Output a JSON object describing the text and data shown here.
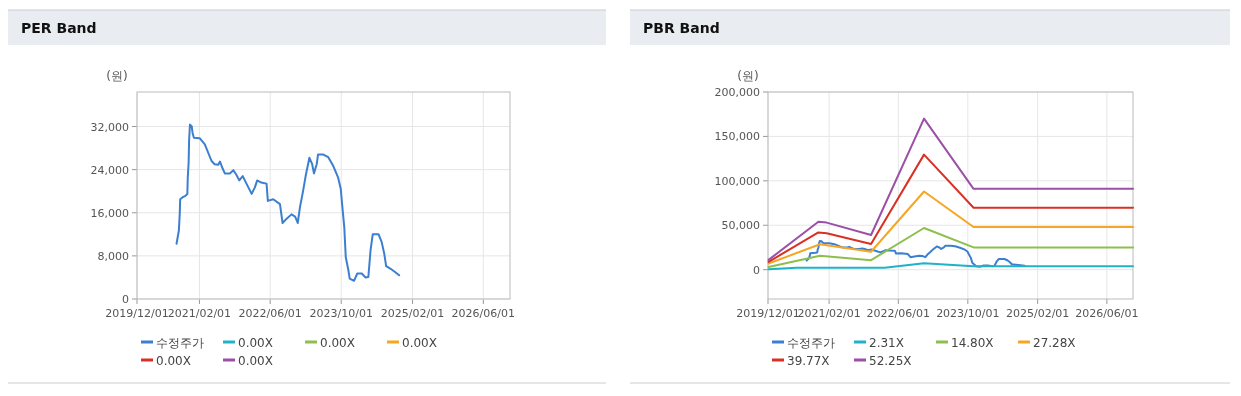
{
  "chart_data": [
    {
      "type": "line",
      "title": "PER Band",
      "ylabel": "(원)",
      "xlim": [
        "2019-12-01",
        "2026-12-01"
      ],
      "ylim": [
        0,
        38400
      ],
      "xticks": [
        {
          "value": "2019-12-01",
          "label": "2019/12/01"
        },
        {
          "value": "2021-02-01",
          "label": "2021/02/01"
        },
        {
          "value": "2022-06-01",
          "label": "2022/06/01"
        },
        {
          "value": "2023-10-01",
          "label": "2023/10/01"
        },
        {
          "value": "2025-02-01",
          "label": "2025/02/01"
        },
        {
          "value": "2026-06-01",
          "label": "2026/06/01"
        }
      ],
      "yticks": [
        0,
        {
          "value": 8000,
          "label": "8,000"
        },
        {
          "value": 16000,
          "label": "16,000"
        },
        {
          "value": 24000,
          "label": "24,000"
        },
        {
          "value": 32000,
          "label": "32,000"
        }
      ],
      "grid": true,
      "legend": "bottom",
      "series": [
        {
          "name": "수정주가",
          "color": "#3c7fd1",
          "x": [
            "2020-08-28",
            "2020-09-13",
            "2020-09-19",
            "2020-09-22",
            "2020-10-07",
            "2020-10-28",
            "2020-11-10",
            "2020-11-13",
            "2020-11-19",
            "2020-11-22",
            "2020-11-28",
            "2020-12-10",
            "2020-12-16",
            "2020-12-25",
            "2021-02-04",
            "2021-03-10",
            "2021-04-25",
            "2021-05-16",
            "2021-06-10",
            "2021-06-22",
            "2021-07-07",
            "2021-07-25",
            "2021-08-28",
            "2021-09-22",
            "2021-10-13",
            "2021-11-01",
            "2021-11-25",
            "2021-12-22",
            "2022-01-25",
            "2022-02-16",
            "2022-03-04",
            "2022-04-01",
            "2022-05-07",
            "2022-05-16",
            "2022-06-22",
            "2022-08-07",
            "2022-08-25",
            "2022-09-22",
            "2022-10-25",
            "2022-11-19",
            "2022-12-07",
            "2022-12-22",
            "2023-01-13",
            "2023-02-01",
            "2023-02-25",
            "2023-03-16",
            "2023-03-28",
            "2023-04-16",
            "2023-04-25",
            "2023-06-01",
            "2023-07-04",
            "2023-08-07",
            "2023-09-10",
            "2023-09-28",
            "2023-10-07",
            "2023-10-22",
            "2023-11-01",
            "2023-11-19",
            "2023-11-28",
            "2023-12-28",
            "2024-01-19",
            "2024-02-19",
            "2024-03-16",
            "2024-04-04",
            "2024-04-19",
            "2024-05-04",
            "2024-06-13",
            "2024-07-04",
            "2024-07-22",
            "2024-08-04",
            "2024-09-01",
            "2024-10-04",
            "2024-11-01"
          ],
          "values": [
            10250,
            12700,
            15800,
            18500,
            18850,
            19150,
            19460,
            22500,
            25300,
            29300,
            32350,
            32050,
            30800,
            29900,
            29800,
            28700,
            25600,
            25000,
            24900,
            25500,
            24400,
            23300,
            23300,
            23900,
            23000,
            22000,
            22800,
            21300,
            19500,
            20700,
            22000,
            21600,
            21400,
            18200,
            18500,
            17600,
            14100,
            14900,
            15700,
            15300,
            14100,
            17000,
            20100,
            23100,
            26200,
            25000,
            23300,
            25000,
            26800,
            26800,
            26300,
            24700,
            22500,
            20400,
            17600,
            13300,
            7800,
            5340,
            3800,
            3380,
            4730,
            4730,
            4000,
            4100,
            9000,
            12000,
            12000,
            10600,
            8400,
            6100,
            5650,
            5000,
            4400
          ]
        },
        {
          "name": "0.00X",
          "color": "#1fb2c9"
        },
        {
          "name": "0.00X",
          "color": "#8cbf4e"
        },
        {
          "name": "0.00X",
          "color": "#f5a623"
        },
        {
          "name": "0.00X",
          "color": "#d93025"
        },
        {
          "name": "0.00X",
          "color": "#9b4fa6"
        }
      ]
    },
    {
      "type": "line",
      "title": "PBR Band",
      "ylabel": "(원)",
      "xlim": [
        "2019-12-01",
        "2026-12-01"
      ],
      "ylim": [
        -33000,
        200000
      ],
      "xticks": [
        {
          "value": "2019-12-01",
          "label": "2019/12/01"
        },
        {
          "value": "2021-02-01",
          "label": "2021/02/01"
        },
        {
          "value": "2022-06-01",
          "label": "2022/06/01"
        },
        {
          "value": "2023-10-01",
          "label": "2023/10/01"
        },
        {
          "value": "2025-02-01",
          "label": "2025/02/01"
        },
        {
          "value": "2026-06-01",
          "label": "2026/06/01"
        }
      ],
      "yticks": [
        0,
        {
          "value": 50000,
          "label": "50,000"
        },
        {
          "value": 100000,
          "label": "100,000"
        },
        {
          "value": 150000,
          "label": "150,000"
        },
        {
          "value": 200000,
          "label": "200,000"
        }
      ],
      "grid": true,
      "legend": "bottom",
      "series": [
        {
          "name": "수정주가",
          "color": "#3c7fd1",
          "x": [
            "2020-08-28",
            "2020-09-13",
            "2020-09-19",
            "2020-09-22",
            "2020-10-07",
            "2020-10-28",
            "2020-11-10",
            "2020-11-13",
            "2020-11-19",
            "2020-11-22",
            "2020-11-28",
            "2020-12-10",
            "2020-12-16",
            "2020-12-25",
            "2021-02-04",
            "2021-03-10",
            "2021-04-25",
            "2021-05-16",
            "2021-06-10",
            "2021-06-22",
            "2021-07-07",
            "2021-07-25",
            "2021-08-28",
            "2021-09-22",
            "2021-10-13",
            "2021-11-01",
            "2021-11-25",
            "2021-12-22",
            "2022-01-25",
            "2022-02-16",
            "2022-03-04",
            "2022-04-01",
            "2022-05-07",
            "2022-05-16",
            "2022-06-22",
            "2022-08-07",
            "2022-08-25",
            "2022-09-22",
            "2022-10-25",
            "2022-11-19",
            "2022-12-07",
            "2022-12-22",
            "2023-01-13",
            "2023-02-01",
            "2023-02-25",
            "2023-03-16",
            "2023-03-28",
            "2023-04-16",
            "2023-04-25",
            "2023-06-01",
            "2023-07-04",
            "2023-08-07",
            "2023-09-10",
            "2023-09-28",
            "2023-10-07",
            "2023-10-22",
            "2023-11-01",
            "2023-11-19",
            "2023-11-28",
            "2023-12-28",
            "2024-01-19",
            "2024-02-19",
            "2024-03-16",
            "2024-04-04",
            "2024-04-19",
            "2024-05-04",
            "2024-06-13",
            "2024-07-04",
            "2024-07-22",
            "2024-08-04",
            "2024-09-01",
            "2024-10-04",
            "2024-11-01"
          ],
          "values": [
            10250,
            12700,
            15800,
            18500,
            18850,
            19150,
            19460,
            22500,
            25300,
            29300,
            32350,
            32050,
            30800,
            29900,
            29800,
            28700,
            25600,
            25000,
            24900,
            25500,
            24400,
            23300,
            23300,
            23900,
            23000,
            22000,
            22800,
            21300,
            19500,
            20700,
            22000,
            21600,
            21400,
            18200,
            18500,
            17600,
            14100,
            14900,
            15700,
            15300,
            14100,
            17000,
            20100,
            23100,
            26200,
            25000,
            23300,
            25000,
            26800,
            26800,
            26300,
            24700,
            22500,
            20400,
            17600,
            13300,
            7800,
            5340,
            3800,
            3380,
            4730,
            4730,
            4000,
            4100,
            9000,
            12000,
            12000,
            10600,
            8400,
            6100,
            5650,
            5000,
            4400
          ]
        },
        {
          "name": "2.31X",
          "color": "#1fb2c9",
          "x": [
            "2019-12-05",
            "2020-06-19",
            "2022-02-25",
            "2022-11-28",
            "2023-11-10",
            "2026-12-01"
          ],
          "values": [
            500,
            2300,
            2300,
            7300,
            3800,
            3800
          ]
        },
        {
          "name": "14.80X",
          "color": "#8cbf4e",
          "x": [
            "2019-12-05",
            "2020-11-29",
            "2021-11-22",
            "2022-11-28",
            "2023-11-10",
            "2026-12-01"
          ],
          "values": [
            3000,
            15600,
            10700,
            46900,
            25100,
            25100
          ]
        },
        {
          "name": "27.28X",
          "color": "#f5a623",
          "x": [
            "2019-12-05",
            "2020-11-29",
            "2021-11-22",
            "2022-11-28",
            "2023-11-10",
            "2026-12-01"
          ],
          "values": [
            6900,
            28600,
            20200,
            88000,
            48000,
            48000
          ]
        },
        {
          "name": "39.77X",
          "color": "#d93025",
          "x": [
            "2019-12-05",
            "2020-11-18",
            "2021-01-15",
            "2021-11-22",
            "2022-11-28",
            "2023-11-10",
            "2026-12-01"
          ],
          "values": [
            8800,
            41900,
            41100,
            29000,
            129500,
            69700,
            69700
          ]
        },
        {
          "name": "52.25X",
          "color": "#9b4fa6",
          "x": [
            "2019-12-05",
            "2020-11-18",
            "2021-01-15",
            "2021-11-22",
            "2022-11-28",
            "2023-11-10",
            "2026-12-01"
          ],
          "values": [
            11000,
            54000,
            53000,
            39000,
            170000,
            91000,
            91000
          ]
        }
      ]
    }
  ]
}
